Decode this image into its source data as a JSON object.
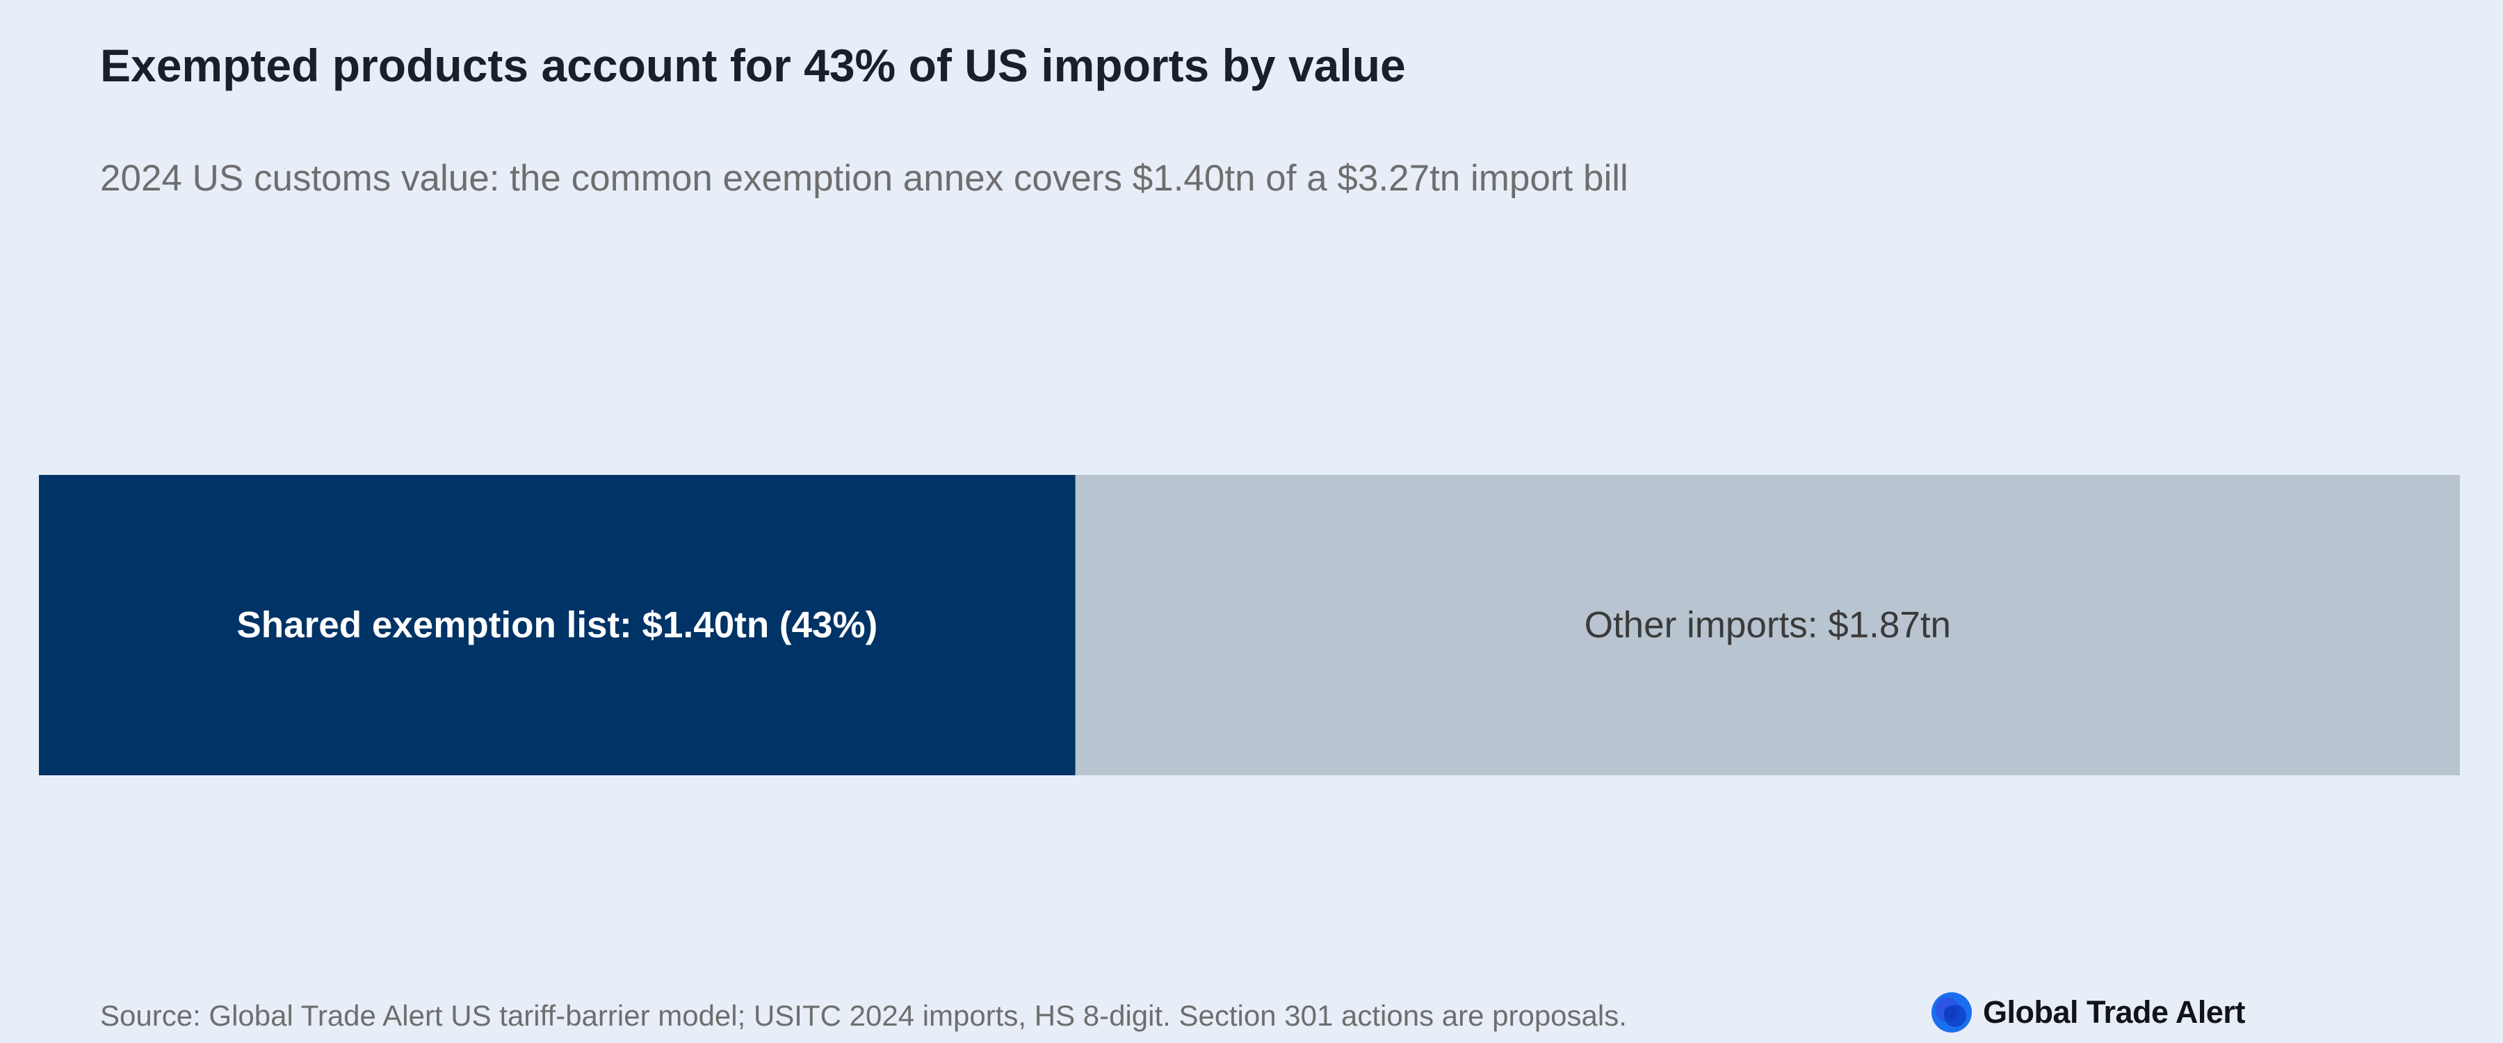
{
  "header": {
    "title": "Exempted products account for 43% of US imports by value",
    "subtitle": "2024 US customs value: the common exemption annex covers $1.40tn of a $3.27tn import bill"
  },
  "chart_data": {
    "type": "bar",
    "orientation": "horizontal-stacked",
    "unit": "US$ trillion",
    "total": 3.27,
    "segments": [
      {
        "value": 1.4,
        "label": "Shared exemption list: $1.40tn (43%)",
        "color": "#003366",
        "label_color": "#ffffff",
        "label_bold": true
      },
      {
        "value": 1.87,
        "label": "Other imports: $1.87tn",
        "color": "#b8c4cf",
        "label_color": "#3a3a3a",
        "label_bold": false
      }
    ]
  },
  "footer": {
    "source": "Source: Global Trade Alert US tariff-barrier model; USITC 2024 imports, HS 8-digit. Section 301 actions are proposals.",
    "brand_name": "Global Trade Alert",
    "brand_icon": "global-trade-alert-logo-icon",
    "brand_color": "#1565e8"
  }
}
